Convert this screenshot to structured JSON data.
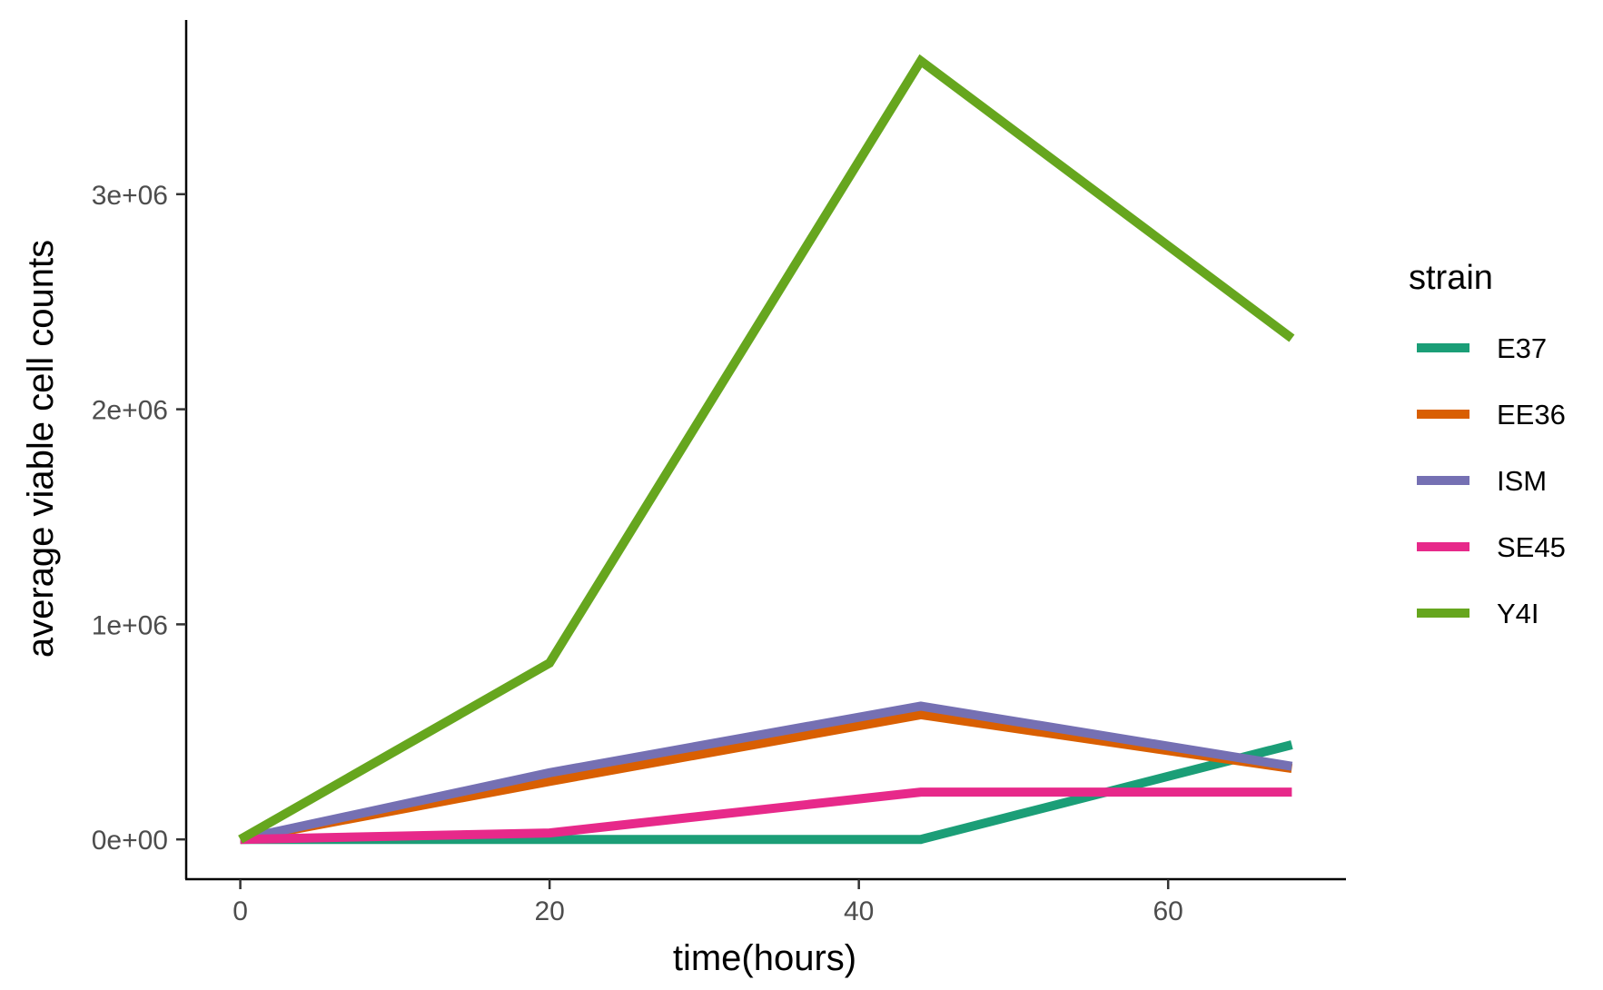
{
  "chart_data": {
    "type": "line",
    "xlabel": "time(hours)",
    "ylabel": "average viable cell counts",
    "xlim": [
      -3.5,
      71.5
    ],
    "ylim": [
      -185000,
      3810000
    ],
    "x_ticks": [
      0,
      20,
      40,
      60
    ],
    "x_tick_labels": [
      "0",
      "20",
      "40",
      "60"
    ],
    "y_ticks": [
      0,
      1000000,
      2000000,
      3000000
    ],
    "y_tick_labels": [
      "0e+00",
      "1e+06",
      "2e+06",
      "3e+06"
    ],
    "grid": false,
    "legend": {
      "title": "strain",
      "position": "right"
    },
    "x": [
      0,
      20,
      44,
      68
    ],
    "series": [
      {
        "name": "E37",
        "color": "#1B9E77",
        "values": [
          0,
          0,
          0,
          440000
        ]
      },
      {
        "name": "EE36",
        "color": "#D95F02",
        "values": [
          0,
          270000,
          580000,
          330000
        ]
      },
      {
        "name": "ISM",
        "color": "#7570B3",
        "values": [
          0,
          310000,
          620000,
          340000
        ]
      },
      {
        "name": "SE45",
        "color": "#E7298A",
        "values": [
          0,
          30000,
          220000,
          220000
        ]
      },
      {
        "name": "Y4I",
        "color": "#66A61E",
        "values": [
          0,
          820000,
          3620000,
          2330000
        ]
      }
    ]
  }
}
